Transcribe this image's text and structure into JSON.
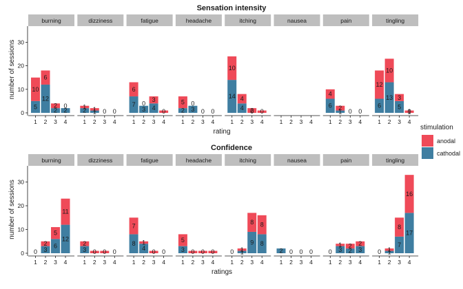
{
  "colors": {
    "anodal": "#EF4A58",
    "cathodal": "#3F7EA1",
    "strip": "#BEBEBE"
  },
  "legend": {
    "title": "stimulation",
    "items": [
      "anodal",
      "cathodal"
    ]
  },
  "chart_data": [
    {
      "type": "bar",
      "stacked": true,
      "title": "Sensation intensity",
      "xlabel": "rating",
      "ylabel": "number of sessions",
      "ylim": [
        0,
        35
      ],
      "yticks": [
        0,
        10,
        20,
        30
      ],
      "categories": [
        "1",
        "2",
        "3",
        "4"
      ],
      "facets": [
        {
          "name": "burning",
          "cathodal": [
            5,
            12,
            2,
            2
          ],
          "anodal": [
            10,
            6,
            2,
            0
          ],
          "cathodal_labels": [
            "5",
            "12",
            "2",
            "2"
          ],
          "anodal_labels": [
            "10",
            "6",
            "2",
            "0"
          ]
        },
        {
          "name": "dizziness",
          "cathodal": [
            2,
            1,
            0,
            0
          ],
          "anodal": [
            1,
            1,
            0,
            0
          ],
          "cathodal_labels": [
            "2",
            "1",
            "0",
            "0"
          ],
          "anodal_labels": [
            "1",
            "1",
            "",
            ""
          ]
        },
        {
          "name": "fatigue",
          "cathodal": [
            7,
            3,
            4,
            0
          ],
          "anodal": [
            6,
            0,
            3,
            1
          ],
          "cathodal_labels": [
            "7",
            "3",
            "4",
            "0"
          ],
          "anodal_labels": [
            "6",
            "0",
            "3",
            ""
          ]
        },
        {
          "name": "headache",
          "cathodal": [
            2,
            3,
            0,
            0
          ],
          "anodal": [
            5,
            0,
            0,
            0
          ],
          "cathodal_labels": [
            "2",
            "3",
            "0",
            "0"
          ],
          "anodal_labels": [
            "5",
            "0",
            "",
            ""
          ]
        },
        {
          "name": "itching",
          "cathodal": [
            14,
            4,
            0,
            0
          ],
          "anodal": [
            10,
            4,
            2,
            1
          ],
          "cathodal_labels": [
            "14",
            "4",
            "0",
            "0"
          ],
          "anodal_labels": [
            "10",
            "4",
            "2",
            ""
          ]
        },
        {
          "name": "nausea",
          "cathodal": [
            0,
            0,
            0,
            0
          ],
          "anodal": [
            0,
            0,
            0,
            0
          ],
          "cathodal_labels": [
            "",
            "",
            "",
            ""
          ],
          "anodal_labels": [
            "",
            "",
            "",
            ""
          ]
        },
        {
          "name": "pain",
          "cathodal": [
            6,
            1,
            0,
            0
          ],
          "anodal": [
            4,
            2,
            0,
            0
          ],
          "cathodal_labels": [
            "6",
            "1",
            "0",
            "0"
          ],
          "anodal_labels": [
            "4",
            "2",
            "",
            ""
          ]
        },
        {
          "name": "tingling",
          "cathodal": [
            6,
            13,
            5,
            0
          ],
          "anodal": [
            12,
            10,
            3,
            1
          ],
          "cathodal_labels": [
            "6",
            "13",
            "5",
            "0"
          ],
          "anodal_labels": [
            "12",
            "10",
            "3",
            "1"
          ]
        }
      ]
    },
    {
      "type": "bar",
      "stacked": true,
      "title": "Confidence",
      "xlabel": "ratings",
      "ylabel": "number of sessions",
      "ylim": [
        0,
        35
      ],
      "yticks": [
        0,
        10,
        20,
        30
      ],
      "categories": [
        "1",
        "2",
        "3",
        "4"
      ],
      "facets": [
        {
          "name": "burning",
          "cathodal": [
            0,
            3,
            6,
            12
          ],
          "anodal": [
            0,
            2,
            5,
            11
          ],
          "cathodal_labels": [
            "0",
            "3",
            "6",
            "12"
          ],
          "anodal_labels": [
            "",
            "2",
            "5",
            "11"
          ]
        },
        {
          "name": "dizziness",
          "cathodal": [
            3,
            0,
            0,
            0
          ],
          "anodal": [
            2,
            1,
            1,
            0
          ],
          "cathodal_labels": [
            "3",
            "0",
            "0",
            "0"
          ],
          "anodal_labels": [
            "2",
            "",
            "",
            ""
          ]
        },
        {
          "name": "fatigue",
          "cathodal": [
            8,
            4,
            0,
            0
          ],
          "anodal": [
            7,
            1,
            1,
            0
          ],
          "cathodal_labels": [
            "8",
            "4",
            "0",
            "0"
          ],
          "anodal_labels": [
            "7",
            "1",
            "",
            ""
          ]
        },
        {
          "name": "headache",
          "cathodal": [
            3,
            0,
            0,
            0
          ],
          "anodal": [
            5,
            1,
            1,
            1
          ],
          "cathodal_labels": [
            "3",
            "0",
            "0",
            "0"
          ],
          "anodal_labels": [
            "5",
            "",
            "",
            ""
          ]
        },
        {
          "name": "itching",
          "cathodal": [
            0,
            1,
            9,
            8
          ],
          "anodal": [
            0,
            1,
            8,
            8
          ],
          "cathodal_labels": [
            "0",
            "1",
            "9",
            "8"
          ],
          "anodal_labels": [
            "",
            "1",
            "8",
            "8"
          ]
        },
        {
          "name": "nausea",
          "cathodal": [
            2,
            0,
            0,
            0
          ],
          "anodal": [
            0,
            0,
            0,
            0
          ],
          "cathodal_labels": [
            "2",
            "0",
            "0",
            "0"
          ],
          "anodal_labels": [
            "",
            "",
            "",
            ""
          ]
        },
        {
          "name": "pain",
          "cathodal": [
            0,
            3,
            2,
            3
          ],
          "anodal": [
            0,
            1,
            2,
            2
          ],
          "cathodal_labels": [
            "0",
            "3",
            "2",
            "3"
          ],
          "anodal_labels": [
            "",
            "1",
            "2",
            "2"
          ]
        },
        {
          "name": "tingling",
          "cathodal": [
            0,
            1,
            7,
            17
          ],
          "anodal": [
            0,
            1,
            8,
            16
          ],
          "cathodal_labels": [
            "0",
            "1",
            "7",
            "17"
          ],
          "anodal_labels": [
            "",
            "1",
            "8",
            "16"
          ]
        }
      ]
    }
  ]
}
